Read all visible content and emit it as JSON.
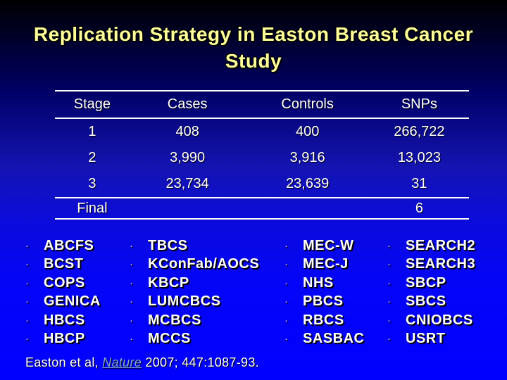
{
  "title": {
    "line1": "Replication Strategy in Easton Breast Cancer",
    "line2": "Study"
  },
  "table": {
    "headers": [
      "Stage",
      "Cases",
      "Controls",
      "SNPs"
    ],
    "rows": [
      {
        "stage": "1",
        "cases": "408",
        "controls": "400",
        "snps": "266,722"
      },
      {
        "stage": "2",
        "cases": "3,990",
        "controls": "3,916",
        "snps": "13,023"
      },
      {
        "stage": "3",
        "cases": "23,734",
        "controls": "23,639",
        "snps": "31"
      }
    ],
    "final_row": {
      "label": "Final",
      "cases": "",
      "controls": "",
      "snps": "6"
    }
  },
  "studies": {
    "bullet_glyph": "·",
    "col1": [
      "ABCFS",
      "BCST",
      "COPS",
      "GENICA",
      "HBCS",
      "HBCP"
    ],
    "col2": [
      "TBCS",
      "KConFab/AOCS",
      "KBCP",
      "LUMCBCS",
      "MCBCS",
      "MCCS"
    ],
    "col3": [
      "MEC-W",
      "MEC-J",
      "NHS",
      "PBCS",
      "RBCS",
      "SASBAC"
    ],
    "col4": [
      "SEARCH2",
      "SEARCH3",
      "SBCP",
      "SBCS",
      "CNIOBCS",
      "USRT"
    ]
  },
  "citation": {
    "prefix": "Easton et al, ",
    "journal": "Nature",
    "suffix": " 2007; 447:1087-93."
  },
  "colors": {
    "background_top": "#000000",
    "background_bottom": "#0000FF",
    "title_text": "#FFFF99",
    "body_text": "#FFFFFF",
    "link_text": "#7FA8D9"
  }
}
